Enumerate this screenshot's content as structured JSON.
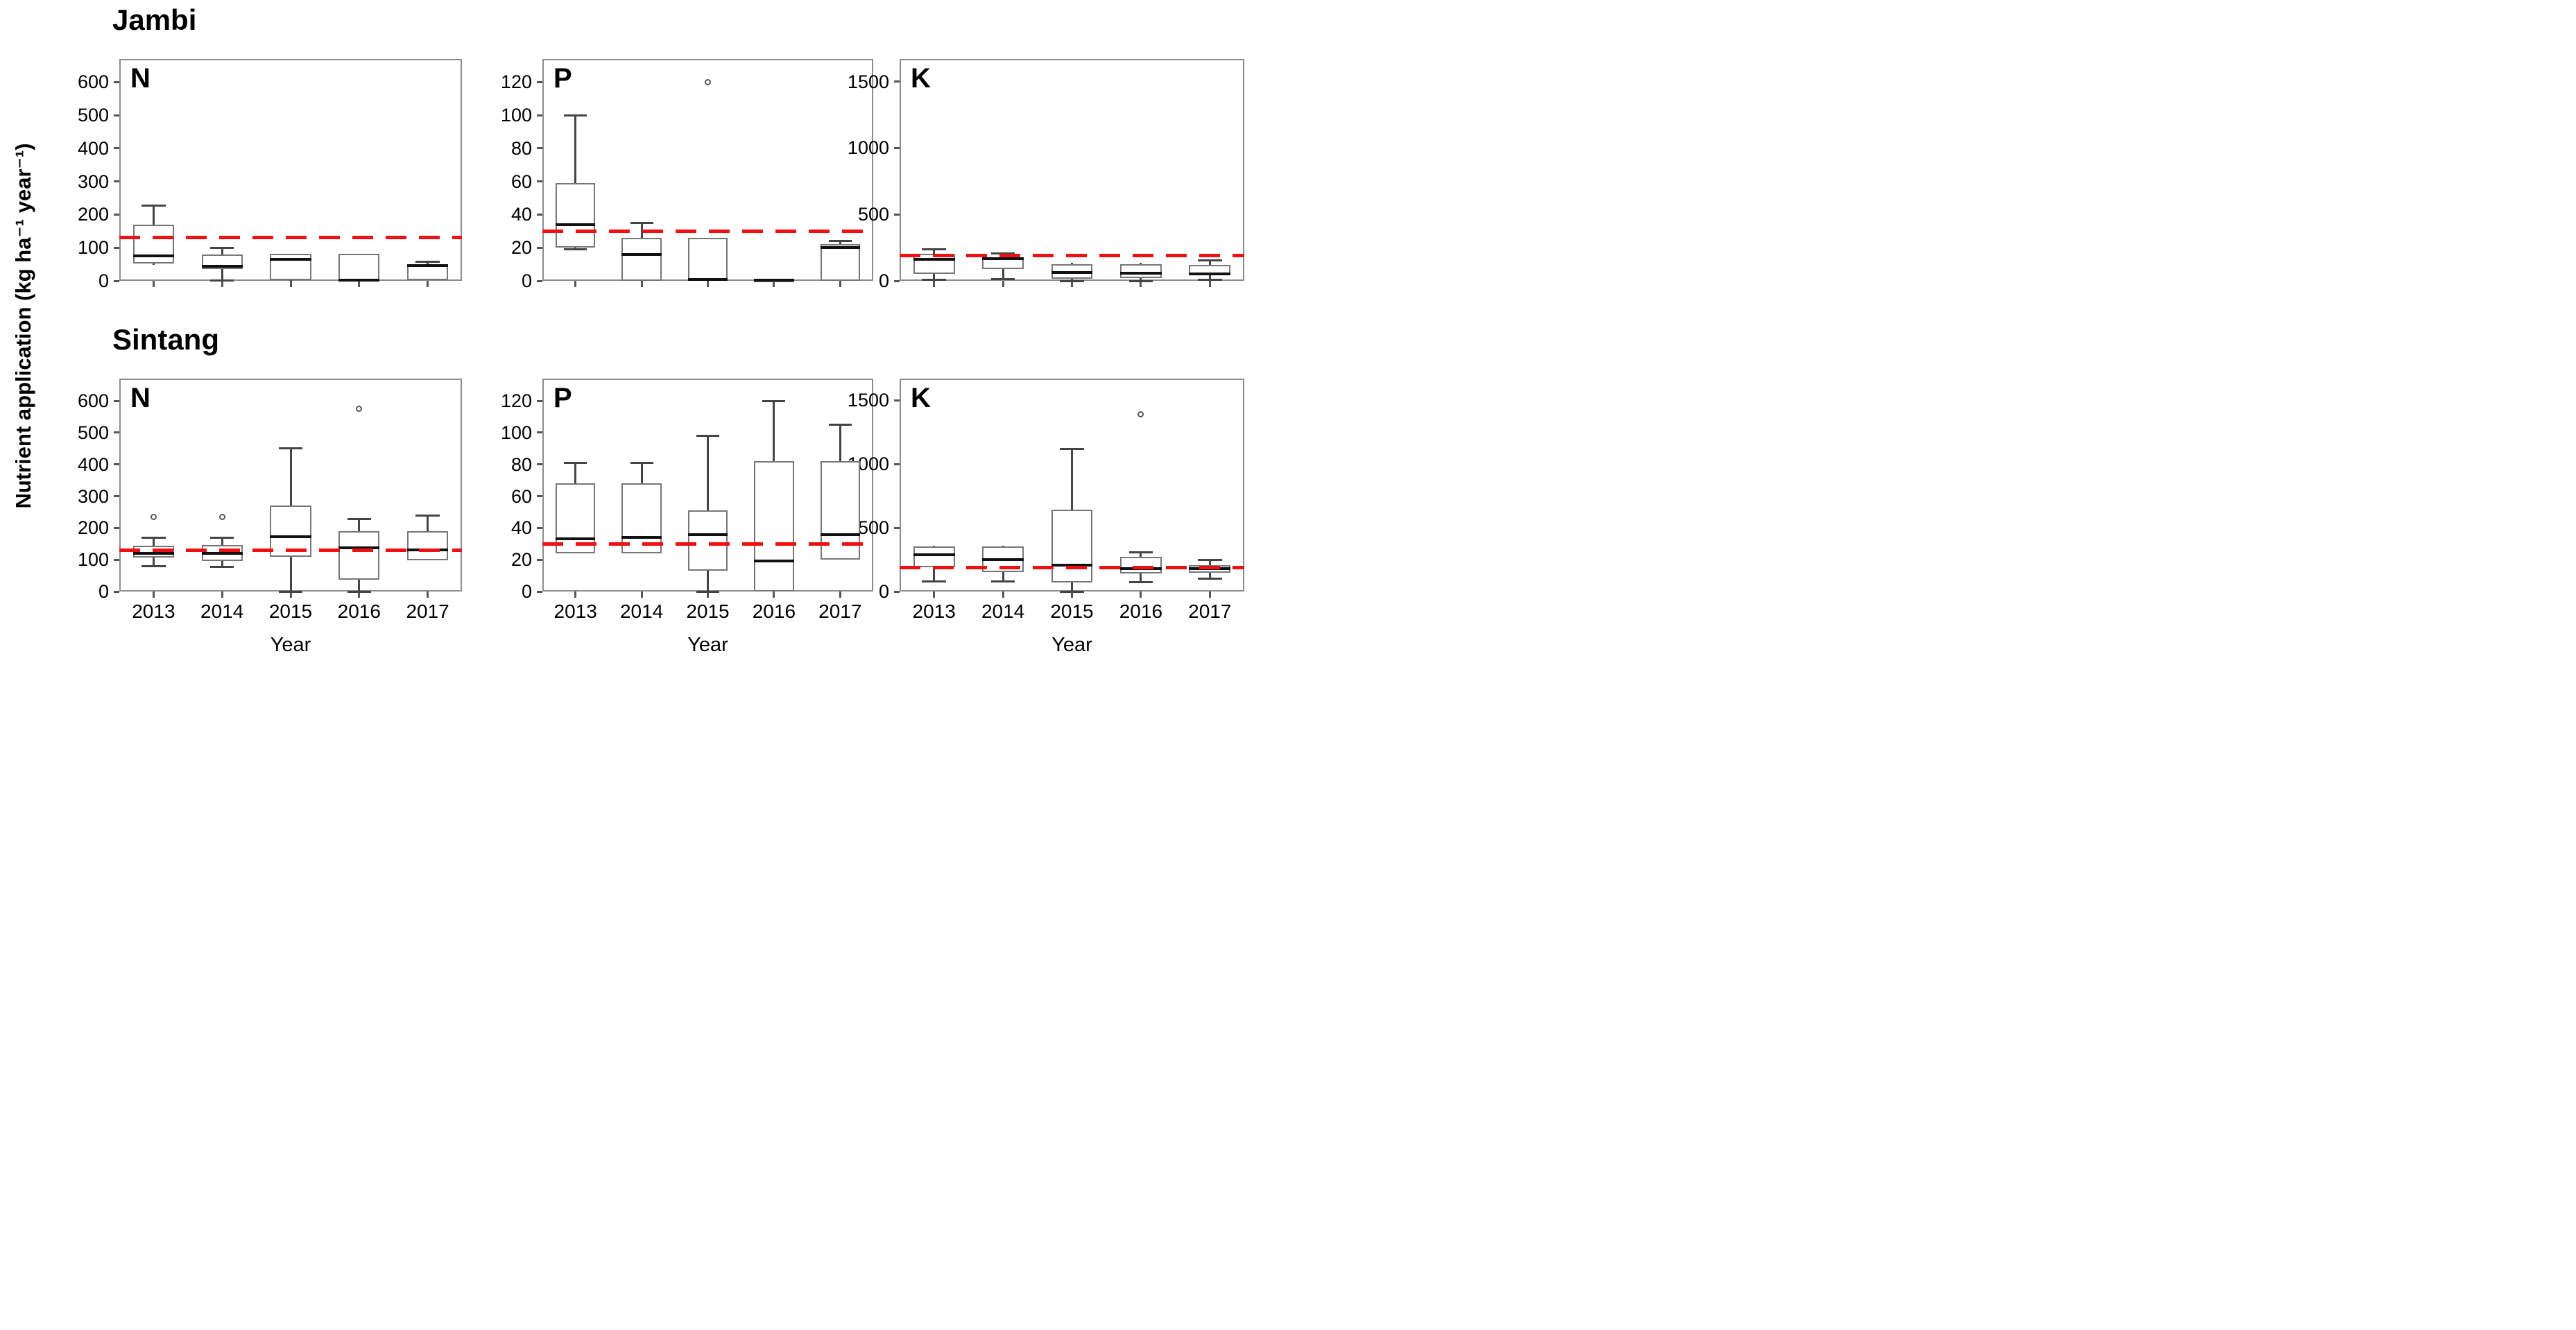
{
  "figure": {
    "y_axis_title": "Nutrient application (kg ha⁻¹ year⁻¹)",
    "x_axis_title": "Year",
    "row_titles": [
      "Jambi",
      "Sintang"
    ],
    "panel_letters": [
      "N",
      "P",
      "K"
    ],
    "colors": {
      "reference_line": "#ee1111",
      "box_border": "#777777",
      "median": "#111111",
      "whisker": "#444444",
      "panel_border": "#8c8c8c",
      "text": "#000000",
      "background": "#ffffff"
    }
  },
  "chart_data": [
    {
      "type": "box",
      "id": "jambi-n",
      "region": "Jambi",
      "nutrient": "N",
      "ylim": [
        0,
        670
      ],
      "yticks": [
        0,
        100,
        200,
        300,
        400,
        500,
        600
      ],
      "reference_line": 130,
      "categories": [
        "2013",
        "2014",
        "2015",
        "2016",
        "2017"
      ],
      "show_x_tick_labels": false,
      "boxes": [
        {
          "year": "2013",
          "whisker_low": 48,
          "q1": 52,
          "median": 75,
          "q3": 170,
          "whisker_high": 228,
          "outliers": []
        },
        {
          "year": "2014",
          "whisker_low": 2,
          "q1": 35,
          "median": 43,
          "q3": 80,
          "whisker_high": 100,
          "outliers": []
        },
        {
          "year": "2015",
          "whisker_low": 0,
          "q1": 2,
          "median": 64,
          "q3": 82,
          "whisker_high": 82,
          "outliers": []
        },
        {
          "year": "2016",
          "whisker_low": 0,
          "q1": 0,
          "median": 2,
          "q3": 82,
          "whisker_high": 82,
          "outliers": []
        },
        {
          "year": "2017",
          "whisker_low": 2,
          "q1": 3,
          "median": 46,
          "q3": 50,
          "whisker_high": 57,
          "outliers": []
        }
      ]
    },
    {
      "type": "box",
      "id": "jambi-p",
      "region": "Jambi",
      "nutrient": "P",
      "ylim": [
        0,
        134
      ],
      "yticks": [
        0,
        20,
        40,
        60,
        80,
        100,
        120
      ],
      "reference_line": 30,
      "categories": [
        "2013",
        "2014",
        "2015",
        "2016",
        "2017"
      ],
      "show_x_tick_labels": false,
      "boxes": [
        {
          "year": "2013",
          "whisker_low": 19,
          "q1": 20,
          "median": 34,
          "q3": 59,
          "whisker_high": 100,
          "outliers": []
        },
        {
          "year": "2014",
          "whisker_low": 0,
          "q1": 0,
          "median": 16,
          "q3": 26,
          "whisker_high": 35,
          "outliers": []
        },
        {
          "year": "2015",
          "whisker_low": 0,
          "q1": 0,
          "median": 1,
          "q3": 26,
          "whisker_high": 26,
          "outliers": [
            120
          ]
        },
        {
          "year": "2016",
          "whisker_low": 0,
          "q1": 0,
          "median": 0.5,
          "q3": 1,
          "whisker_high": 1,
          "outliers": []
        },
        {
          "year": "2017",
          "whisker_low": 0,
          "q1": 0,
          "median": 20,
          "q3": 22,
          "whisker_high": 24,
          "outliers": []
        }
      ]
    },
    {
      "type": "box",
      "id": "jambi-k",
      "region": "Jambi",
      "nutrient": "K",
      "ylim": [
        0,
        1670
      ],
      "yticks": [
        0,
        500,
        1000,
        1500
      ],
      "reference_line": 190,
      "categories": [
        "2013",
        "2014",
        "2015",
        "2016",
        "2017"
      ],
      "show_x_tick_labels": false,
      "boxes": [
        {
          "year": "2013",
          "whisker_low": 10,
          "q1": 50,
          "median": 163,
          "q3": 203,
          "whisker_high": 235,
          "outliers": []
        },
        {
          "year": "2014",
          "whisker_low": 15,
          "q1": 87,
          "median": 165,
          "q3": 178,
          "whisker_high": 208,
          "outliers": []
        },
        {
          "year": "2015",
          "whisker_low": 0,
          "q1": 15,
          "median": 62,
          "q3": 127,
          "whisker_high": 137,
          "outliers": []
        },
        {
          "year": "2016",
          "whisker_low": 0,
          "q1": 20,
          "median": 58,
          "q3": 127,
          "whisker_high": 135,
          "outliers": []
        },
        {
          "year": "2017",
          "whisker_low": 10,
          "q1": 40,
          "median": 52,
          "q3": 118,
          "whisker_high": 152,
          "outliers": []
        }
      ]
    },
    {
      "type": "box",
      "id": "sintang-n",
      "region": "Sintang",
      "nutrient": "N",
      "ylim": [
        0,
        670
      ],
      "yticks": [
        0,
        100,
        200,
        300,
        400,
        500,
        600
      ],
      "reference_line": 130,
      "categories": [
        "2013",
        "2014",
        "2015",
        "2016",
        "2017"
      ],
      "show_x_tick_labels": true,
      "boxes": [
        {
          "year": "2013",
          "whisker_low": 80,
          "q1": 106,
          "median": 120,
          "q3": 145,
          "whisker_high": 170,
          "outliers": [
            235
          ]
        },
        {
          "year": "2014",
          "whisker_low": 78,
          "q1": 97,
          "median": 119,
          "q3": 146,
          "whisker_high": 170,
          "outliers": [
            235
          ]
        },
        {
          "year": "2015",
          "whisker_low": 0,
          "q1": 110,
          "median": 172,
          "q3": 270,
          "whisker_high": 450,
          "outliers": []
        },
        {
          "year": "2016",
          "whisker_low": 0,
          "q1": 38,
          "median": 138,
          "q3": 190,
          "whisker_high": 227,
          "outliers": [
            575
          ]
        },
        {
          "year": "2017",
          "whisker_low": 98,
          "q1": 99,
          "median": 130,
          "q3": 190,
          "whisker_high": 240,
          "outliers": []
        }
      ]
    },
    {
      "type": "box",
      "id": "sintang-p",
      "region": "Sintang",
      "nutrient": "P",
      "ylim": [
        0,
        134
      ],
      "yticks": [
        0,
        20,
        40,
        60,
        80,
        100,
        120
      ],
      "reference_line": 30,
      "categories": [
        "2013",
        "2014",
        "2015",
        "2016",
        "2017"
      ],
      "show_x_tick_labels": true,
      "boxes": [
        {
          "year": "2013",
          "whisker_low": 24,
          "q1": 24,
          "median": 33,
          "q3": 68,
          "whisker_high": 81,
          "outliers": []
        },
        {
          "year": "2014",
          "whisker_low": 24,
          "q1": 24,
          "median": 34,
          "q3": 68,
          "whisker_high": 81,
          "outliers": []
        },
        {
          "year": "2015",
          "whisker_low": 0,
          "q1": 13,
          "median": 36,
          "q3": 51,
          "whisker_high": 98,
          "outliers": []
        },
        {
          "year": "2016",
          "whisker_low": 0,
          "q1": 0,
          "median": 19,
          "q3": 82,
          "whisker_high": 120,
          "outliers": []
        },
        {
          "year": "2017",
          "whisker_low": 20,
          "q1": 20,
          "median": 36,
          "q3": 82,
          "whisker_high": 105,
          "outliers": []
        }
      ]
    },
    {
      "type": "box",
      "id": "sintang-k",
      "region": "Sintang",
      "nutrient": "K",
      "ylim": [
        0,
        1670
      ],
      "yticks": [
        0,
        500,
        1000,
        1500
      ],
      "reference_line": 190,
      "categories": [
        "2013",
        "2014",
        "2015",
        "2016",
        "2017"
      ],
      "show_x_tick_labels": true,
      "boxes": [
        {
          "year": "2013",
          "whisker_low": 78,
          "q1": 190,
          "median": 287,
          "q3": 355,
          "whisker_high": 360,
          "outliers": []
        },
        {
          "year": "2014",
          "whisker_low": 78,
          "q1": 150,
          "median": 250,
          "q3": 355,
          "whisker_high": 360,
          "outliers": []
        },
        {
          "year": "2015",
          "whisker_low": 0,
          "q1": 70,
          "median": 205,
          "q3": 640,
          "whisker_high": 1120,
          "outliers": []
        },
        {
          "year": "2016",
          "whisker_low": 75,
          "q1": 140,
          "median": 180,
          "q3": 270,
          "whisker_high": 305,
          "outliers": [
            1390
          ]
        },
        {
          "year": "2017",
          "whisker_low": 100,
          "q1": 145,
          "median": 178,
          "q3": 208,
          "whisker_high": 248,
          "outliers": []
        }
      ]
    }
  ]
}
